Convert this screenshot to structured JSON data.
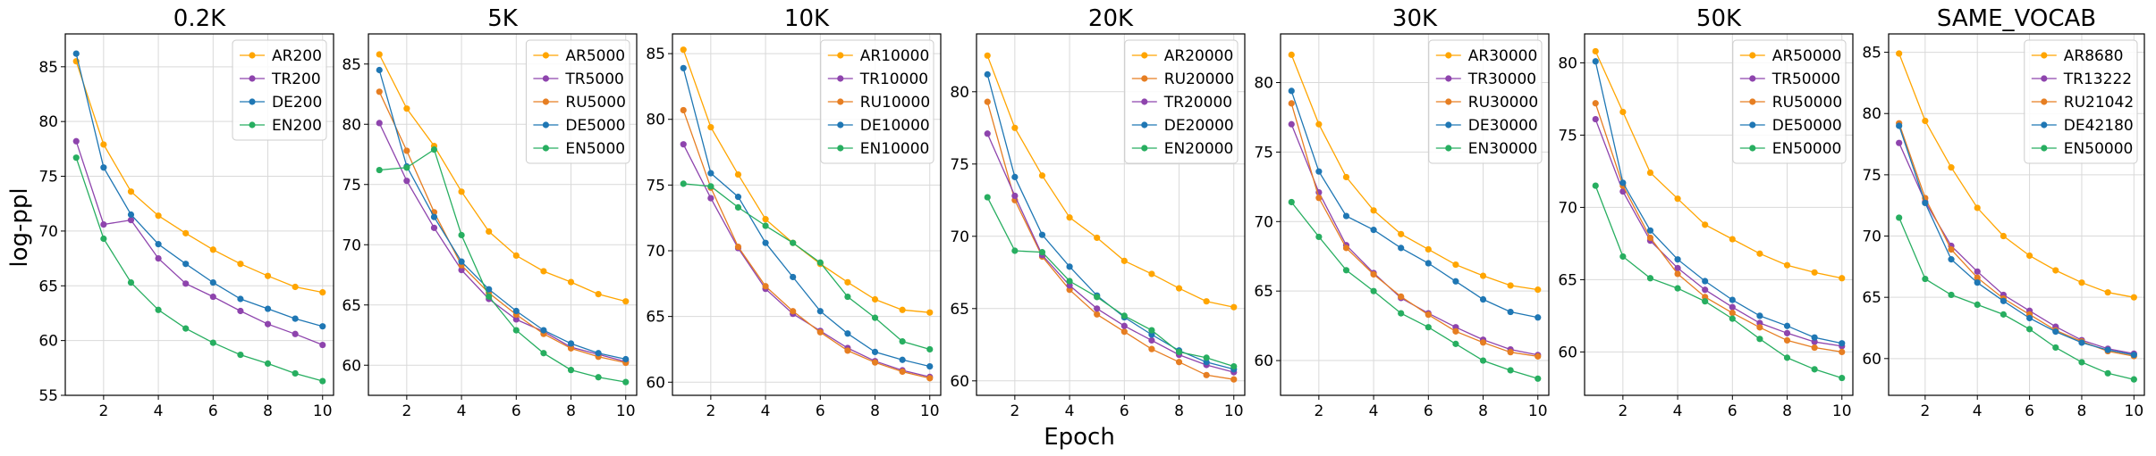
{
  "figure": {
    "xlabel": "Epoch",
    "ylabel": "log-ppl"
  },
  "chart_data": [
    {
      "type": "line",
      "title": "0.2K",
      "x": [
        1,
        2,
        3,
        4,
        5,
        6,
        7,
        8,
        9,
        10
      ],
      "xticks": [
        2,
        4,
        6,
        8,
        10
      ],
      "xlim": [
        0.6,
        10.4
      ],
      "yticks": [
        55,
        60,
        65,
        70,
        75,
        80,
        85
      ],
      "ylim": [
        55,
        88
      ],
      "grid": true,
      "legend_position": "top-right",
      "series": [
        {
          "name": "AR200",
          "color": "#ffa500",
          "values": [
            85.5,
            77.9,
            73.6,
            71.4,
            69.8,
            68.3,
            67.0,
            65.9,
            64.9,
            64.4
          ]
        },
        {
          "name": "TR200",
          "color": "#8e44ad",
          "values": [
            78.2,
            70.6,
            71.0,
            67.5,
            65.2,
            64.0,
            62.7,
            61.5,
            60.6,
            59.6
          ]
        },
        {
          "name": "DE200",
          "color": "#1f77b4",
          "values": [
            86.2,
            75.8,
            71.5,
            68.8,
            67.0,
            65.3,
            63.8,
            62.9,
            62.0,
            61.3
          ]
        },
        {
          "name": "EN200",
          "color": "#27ae60",
          "values": [
            76.7,
            69.3,
            65.3,
            62.8,
            61.1,
            59.8,
            58.7,
            57.9,
            57.0,
            56.3
          ]
        }
      ]
    },
    {
      "type": "line",
      "title": "5K",
      "x": [
        1,
        2,
        3,
        4,
        5,
        6,
        7,
        8,
        9,
        10
      ],
      "xticks": [
        2,
        4,
        6,
        8,
        10
      ],
      "xlim": [
        0.6,
        10.4
      ],
      "yticks": [
        60,
        65,
        70,
        75,
        80,
        85
      ],
      "ylim": [
        57.5,
        87.5
      ],
      "grid": true,
      "legend_position": "top-right",
      "series": [
        {
          "name": "AR5000",
          "color": "#ffa500",
          "values": [
            85.8,
            81.3,
            78.2,
            74.4,
            71.1,
            69.1,
            67.8,
            66.9,
            65.9,
            65.3
          ]
        },
        {
          "name": "TR5000",
          "color": "#8e44ad",
          "values": [
            80.1,
            75.3,
            71.4,
            67.9,
            65.5,
            63.8,
            62.8,
            61.5,
            60.9,
            60.3
          ]
        },
        {
          "name": "RU5000",
          "color": "#e67e22",
          "values": [
            82.7,
            77.8,
            72.7,
            68.3,
            66.0,
            64.2,
            62.6,
            61.4,
            60.7,
            60.2
          ]
        },
        {
          "name": "DE5000",
          "color": "#1f77b4",
          "values": [
            84.5,
            76.5,
            72.3,
            68.6,
            66.3,
            64.5,
            62.9,
            61.8,
            61.0,
            60.5
          ]
        },
        {
          "name": "EN5000",
          "color": "#27ae60",
          "values": [
            76.2,
            76.4,
            77.9,
            70.8,
            65.7,
            62.9,
            61.0,
            59.6,
            59.0,
            58.6
          ]
        }
      ]
    },
    {
      "type": "line",
      "title": "10K",
      "x": [
        1,
        2,
        3,
        4,
        5,
        6,
        7,
        8,
        9,
        10
      ],
      "xticks": [
        2,
        4,
        6,
        8,
        10
      ],
      "xlim": [
        0.6,
        10.4
      ],
      "yticks": [
        60,
        65,
        70,
        75,
        80,
        85
      ],
      "ylim": [
        59,
        86.5
      ],
      "grid": true,
      "legend_position": "top-right",
      "series": [
        {
          "name": "AR10000",
          "color": "#ffa500",
          "values": [
            85.3,
            79.4,
            75.8,
            72.4,
            70.6,
            69.0,
            67.6,
            66.3,
            65.5,
            65.3
          ]
        },
        {
          "name": "TR10000",
          "color": "#8e44ad",
          "values": [
            78.1,
            74.0,
            70.2,
            67.1,
            65.2,
            63.9,
            62.6,
            61.6,
            60.9,
            60.4
          ]
        },
        {
          "name": "RU10000",
          "color": "#e67e22",
          "values": [
            80.7,
            74.8,
            70.3,
            67.3,
            65.4,
            63.8,
            62.4,
            61.5,
            60.8,
            60.3
          ]
        },
        {
          "name": "DE10000",
          "color": "#1f77b4",
          "values": [
            83.9,
            75.9,
            74.1,
            70.6,
            68.0,
            65.4,
            63.7,
            62.3,
            61.7,
            61.2
          ]
        },
        {
          "name": "EN10000",
          "color": "#27ae60",
          "values": [
            75.1,
            74.9,
            73.3,
            71.9,
            70.6,
            69.1,
            66.5,
            64.9,
            63.1,
            62.5
          ]
        }
      ]
    },
    {
      "type": "line",
      "title": "20K",
      "x": [
        1,
        2,
        3,
        4,
        5,
        6,
        7,
        8,
        9,
        10
      ],
      "xticks": [
        2,
        4,
        6,
        8,
        10
      ],
      "xlim": [
        0.6,
        10.4
      ],
      "yticks": [
        60,
        65,
        70,
        75,
        80
      ],
      "ylim": [
        59,
        84
      ],
      "grid": true,
      "legend_position": "top-right",
      "series": [
        {
          "name": "AR20000",
          "color": "#ffa500",
          "values": [
            82.5,
            77.5,
            74.2,
            71.3,
            69.9,
            68.3,
            67.4,
            66.4,
            65.5,
            65.1
          ]
        },
        {
          "name": "RU20000",
          "color": "#e67e22",
          "values": [
            79.3,
            72.5,
            68.6,
            66.3,
            64.6,
            63.4,
            62.2,
            61.3,
            60.4,
            60.1
          ]
        },
        {
          "name": "TR20000",
          "color": "#8e44ad",
          "values": [
            77.1,
            72.8,
            68.7,
            66.6,
            65.0,
            63.8,
            62.8,
            61.8,
            61.1,
            60.6
          ]
        },
        {
          "name": "DE20000",
          "color": "#1f77b4",
          "values": [
            81.2,
            74.1,
            70.1,
            67.9,
            65.9,
            64.4,
            63.2,
            62.1,
            61.3,
            60.8
          ]
        },
        {
          "name": "EN20000",
          "color": "#27ae60",
          "values": [
            72.7,
            69.0,
            68.9,
            66.9,
            65.8,
            64.5,
            63.5,
            62.0,
            61.6,
            61.0
          ]
        }
      ]
    },
    {
      "type": "line",
      "title": "30K",
      "x": [
        1,
        2,
        3,
        4,
        5,
        6,
        7,
        8,
        9,
        10
      ],
      "xticks": [
        2,
        4,
        6,
        8,
        10
      ],
      "xlim": [
        0.6,
        10.4
      ],
      "yticks": [
        60,
        65,
        70,
        75,
        80
      ],
      "ylim": [
        57.5,
        83.5
      ],
      "grid": true,
      "legend_position": "top-right",
      "series": [
        {
          "name": "AR30000",
          "color": "#ffa500",
          "values": [
            82.0,
            77.0,
            73.2,
            70.8,
            69.1,
            68.0,
            66.9,
            66.1,
            65.4,
            65.1
          ]
        },
        {
          "name": "TR30000",
          "color": "#8e44ad",
          "values": [
            77.0,
            72.1,
            68.3,
            66.3,
            64.5,
            63.4,
            62.4,
            61.5,
            60.8,
            60.4
          ]
        },
        {
          "name": "RU30000",
          "color": "#e67e22",
          "values": [
            78.5,
            71.7,
            68.1,
            66.2,
            64.6,
            63.3,
            62.1,
            61.3,
            60.6,
            60.3
          ]
        },
        {
          "name": "DE30000",
          "color": "#1f77b4",
          "values": [
            79.4,
            73.6,
            70.4,
            69.4,
            68.1,
            67.0,
            65.7,
            64.4,
            63.5,
            63.1
          ]
        },
        {
          "name": "EN30000",
          "color": "#27ae60",
          "values": [
            71.4,
            68.9,
            66.5,
            65.0,
            63.4,
            62.4,
            61.2,
            60.0,
            59.3,
            58.7
          ]
        }
      ]
    },
    {
      "type": "line",
      "title": "50K",
      "x": [
        1,
        2,
        3,
        4,
        5,
        6,
        7,
        8,
        9,
        10
      ],
      "xticks": [
        2,
        4,
        6,
        8,
        10
      ],
      "xlim": [
        0.6,
        10.4
      ],
      "yticks": [
        60,
        65,
        70,
        75,
        80
      ],
      "ylim": [
        57,
        82
      ],
      "grid": true,
      "legend_position": "top-right",
      "series": [
        {
          "name": "AR50000",
          "color": "#ffa500",
          "values": [
            80.8,
            76.6,
            72.4,
            70.6,
            68.8,
            67.8,
            66.8,
            66.0,
            65.5,
            65.1
          ]
        },
        {
          "name": "TR50000",
          "color": "#8e44ad",
          "values": [
            76.1,
            71.1,
            67.7,
            65.8,
            64.3,
            63.1,
            62.0,
            61.3,
            60.7,
            60.4
          ]
        },
        {
          "name": "RU50000",
          "color": "#e67e22",
          "values": [
            77.2,
            71.5,
            67.9,
            65.4,
            63.8,
            62.7,
            61.7,
            60.8,
            60.3,
            60.0
          ]
        },
        {
          "name": "DE50000",
          "color": "#1f77b4",
          "values": [
            80.1,
            71.7,
            68.4,
            66.4,
            64.9,
            63.6,
            62.5,
            61.8,
            61.0,
            60.6
          ]
        },
        {
          "name": "EN50000",
          "color": "#27ae60",
          "values": [
            71.5,
            66.6,
            65.1,
            64.4,
            63.5,
            62.3,
            60.9,
            59.6,
            58.8,
            58.2
          ]
        }
      ]
    },
    {
      "type": "line",
      "title": "SAME_VOCAB",
      "x": [
        1,
        2,
        3,
        4,
        5,
        6,
        7,
        8,
        9,
        10
      ],
      "xticks": [
        2,
        4,
        6,
        8,
        10
      ],
      "xlim": [
        0.6,
        10.4
      ],
      "yticks": [
        60,
        65,
        70,
        75,
        80,
        85
      ],
      "ylim": [
        57,
        86.5
      ],
      "grid": true,
      "legend_position": "top-right",
      "series": [
        {
          "name": "AR8680",
          "color": "#ffa500",
          "values": [
            84.9,
            79.4,
            75.6,
            72.3,
            70.0,
            68.4,
            67.2,
            66.2,
            65.4,
            65.0
          ]
        },
        {
          "name": "TR13222",
          "color": "#8e44ad",
          "values": [
            77.6,
            72.8,
            69.2,
            67.1,
            65.2,
            63.9,
            62.6,
            61.5,
            60.8,
            60.4
          ]
        },
        {
          "name": "RU21042",
          "color": "#e67e22",
          "values": [
            79.2,
            73.1,
            68.9,
            66.6,
            64.9,
            63.6,
            62.3,
            61.4,
            60.6,
            60.2
          ]
        },
        {
          "name": "DE42180",
          "color": "#1f77b4",
          "values": [
            79.0,
            72.7,
            68.1,
            66.2,
            64.7,
            63.3,
            62.2,
            61.3,
            60.7,
            60.3
          ]
        },
        {
          "name": "EN50000",
          "color": "#27ae60",
          "values": [
            71.5,
            66.5,
            65.2,
            64.4,
            63.6,
            62.4,
            60.9,
            59.7,
            58.8,
            58.3
          ]
        }
      ]
    }
  ]
}
